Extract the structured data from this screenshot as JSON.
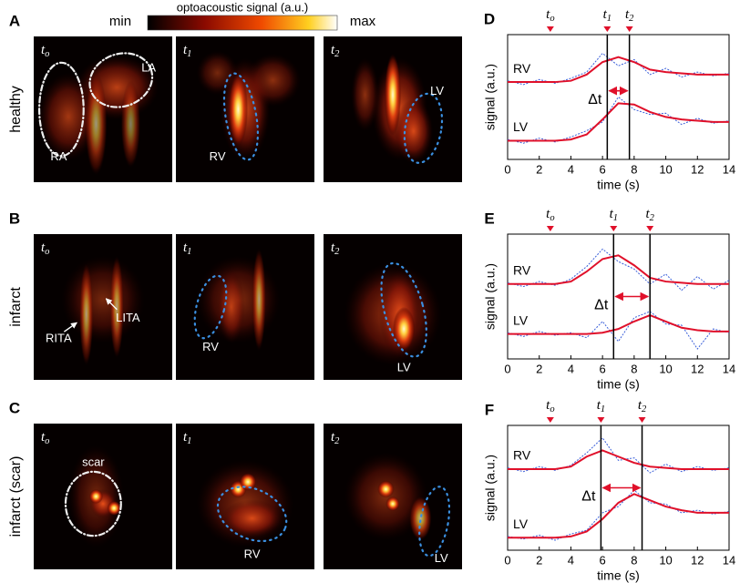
{
  "colorbar": {
    "title": "optoacoustic signal (a.u.)",
    "min": "min",
    "max": "max"
  },
  "rows": [
    {
      "letter": "A",
      "label": "healthy",
      "images": [
        {
          "t": "t",
          "sub": "o",
          "labels": [
            "LA",
            "RA"
          ]
        },
        {
          "t": "t",
          "sub": "1",
          "labels": [
            "RV"
          ]
        },
        {
          "t": "t",
          "sub": "2",
          "labels": [
            "LV"
          ]
        }
      ]
    },
    {
      "letter": "B",
      "label": "infarct",
      "images": [
        {
          "t": "t",
          "sub": "o",
          "labels": [
            "RITA",
            "LITA"
          ]
        },
        {
          "t": "t",
          "sub": "1",
          "labels": [
            "RV"
          ]
        },
        {
          "t": "t",
          "sub": "2",
          "labels": [
            "LV"
          ]
        }
      ]
    },
    {
      "letter": "C",
      "label": "infarct (scar)",
      "images": [
        {
          "t": "t",
          "sub": "o",
          "labels": [
            "scar"
          ]
        },
        {
          "t": "t",
          "sub": "1",
          "labels": [
            "RV"
          ]
        },
        {
          "t": "t",
          "sub": "2",
          "labels": [
            "LV"
          ]
        }
      ]
    }
  ],
  "chart_data": [
    {
      "type": "line",
      "panel": "D",
      "xlabel": "time (s)",
      "ylabel": "signal (a.u.)",
      "x": [
        0,
        1,
        2,
        3,
        4,
        5,
        6,
        7,
        8,
        9,
        10,
        11,
        12,
        13,
        14
      ],
      "xlim": [
        0,
        14
      ],
      "xticks": [
        0,
        2,
        4,
        6,
        8,
        10,
        12,
        14
      ],
      "ylim": [
        0,
        1
      ],
      "raw_color": "#3a5fd9",
      "series": [
        {
          "name": "RV",
          "color": "#e0102a",
          "values": [
            0.62,
            0.62,
            0.62,
            0.62,
            0.63,
            0.68,
            0.78,
            0.82,
            0.78,
            0.72,
            0.7,
            0.69,
            0.68,
            0.68,
            0.68
          ],
          "raw": [
            0.63,
            0.6,
            0.64,
            0.61,
            0.65,
            0.7,
            0.85,
            0.75,
            0.8,
            0.68,
            0.73,
            0.66,
            0.7,
            0.67,
            0.69
          ]
        },
        {
          "name": "LV",
          "color": "#e0102a",
          "values": [
            0.15,
            0.15,
            0.15,
            0.15,
            0.16,
            0.2,
            0.32,
            0.45,
            0.44,
            0.38,
            0.34,
            0.32,
            0.31,
            0.3,
            0.3
          ],
          "raw": [
            0.16,
            0.13,
            0.17,
            0.14,
            0.18,
            0.23,
            0.3,
            0.5,
            0.4,
            0.36,
            0.37,
            0.28,
            0.33,
            0.29,
            0.31
          ]
        }
      ],
      "markers": [
        {
          "t": "t",
          "sub": "o",
          "x": 2.7,
          "line": false
        },
        {
          "t": "t",
          "sub": "1",
          "x": 6.3,
          "line": true
        },
        {
          "t": "t",
          "sub": "2",
          "x": 7.7,
          "line": true
        }
      ],
      "delta": {
        "label": "Δt",
        "y": 0.55
      }
    },
    {
      "type": "line",
      "panel": "E",
      "xlabel": "time (s)",
      "ylabel": "signal (a.u.)",
      "x": [
        0,
        1,
        2,
        3,
        4,
        5,
        6,
        7,
        8,
        9,
        10,
        11,
        12,
        13,
        14
      ],
      "xlim": [
        0,
        14
      ],
      "xticks": [
        0,
        2,
        4,
        6,
        8,
        10,
        12,
        14
      ],
      "ylim": [
        0,
        1
      ],
      "raw_color": "#3a5fd9",
      "series": [
        {
          "name": "RV",
          "color": "#e0102a",
          "values": [
            0.6,
            0.6,
            0.6,
            0.6,
            0.62,
            0.7,
            0.8,
            0.83,
            0.75,
            0.65,
            0.62,
            0.61,
            0.6,
            0.6,
            0.6
          ],
          "raw": [
            0.61,
            0.58,
            0.62,
            0.59,
            0.64,
            0.74,
            0.88,
            0.78,
            0.72,
            0.6,
            0.68,
            0.55,
            0.66,
            0.56,
            0.63
          ]
        },
        {
          "name": "LV",
          "color": "#e0102a",
          "values": [
            0.2,
            0.2,
            0.2,
            0.2,
            0.2,
            0.2,
            0.21,
            0.24,
            0.3,
            0.35,
            0.3,
            0.25,
            0.23,
            0.22,
            0.22
          ],
          "raw": [
            0.21,
            0.18,
            0.22,
            0.19,
            0.21,
            0.17,
            0.3,
            0.14,
            0.33,
            0.38,
            0.28,
            0.27,
            0.08,
            0.24,
            0.21
          ]
        }
      ],
      "markers": [
        {
          "t": "t",
          "sub": "o",
          "x": 2.7,
          "line": false
        },
        {
          "t": "t",
          "sub": "1",
          "x": 6.7,
          "line": true
        },
        {
          "t": "t",
          "sub": "2",
          "x": 9.0,
          "line": true
        }
      ],
      "delta": {
        "label": "Δt",
        "y": 0.5
      }
    },
    {
      "type": "line",
      "panel": "F",
      "xlabel": "time (s)",
      "ylabel": "signal (a.u.)",
      "x": [
        0,
        1,
        2,
        3,
        4,
        5,
        6,
        7,
        8,
        9,
        10,
        11,
        12,
        13,
        14
      ],
      "xlim": [
        0,
        14
      ],
      "xticks": [
        0,
        2,
        4,
        6,
        8,
        10,
        12,
        14
      ],
      "ylim": [
        0,
        1
      ],
      "raw_color": "#3a5fd9",
      "series": [
        {
          "name": "RV",
          "color": "#e0102a",
          "values": [
            0.65,
            0.65,
            0.65,
            0.65,
            0.67,
            0.75,
            0.8,
            0.75,
            0.7,
            0.67,
            0.66,
            0.65,
            0.65,
            0.65,
            0.65
          ],
          "raw": [
            0.66,
            0.63,
            0.67,
            0.64,
            0.68,
            0.78,
            0.9,
            0.72,
            0.74,
            0.62,
            0.69,
            0.63,
            0.67,
            0.64,
            0.66
          ]
        },
        {
          "name": "LV",
          "color": "#e0102a",
          "values": [
            0.1,
            0.1,
            0.1,
            0.1,
            0.11,
            0.15,
            0.25,
            0.38,
            0.45,
            0.4,
            0.35,
            0.32,
            0.3,
            0.3,
            0.3
          ],
          "raw": [
            0.11,
            0.09,
            0.12,
            0.08,
            0.13,
            0.16,
            0.3,
            0.35,
            0.48,
            0.38,
            0.37,
            0.3,
            0.32,
            0.29,
            0.31
          ]
        }
      ],
      "markers": [
        {
          "t": "t",
          "sub": "o",
          "x": 2.7,
          "line": false
        },
        {
          "t": "t",
          "sub": "1",
          "x": 5.9,
          "line": true
        },
        {
          "t": "t",
          "sub": "2",
          "x": 8.5,
          "line": true
        }
      ],
      "delta": {
        "label": "Δt",
        "y": 0.5
      }
    }
  ]
}
